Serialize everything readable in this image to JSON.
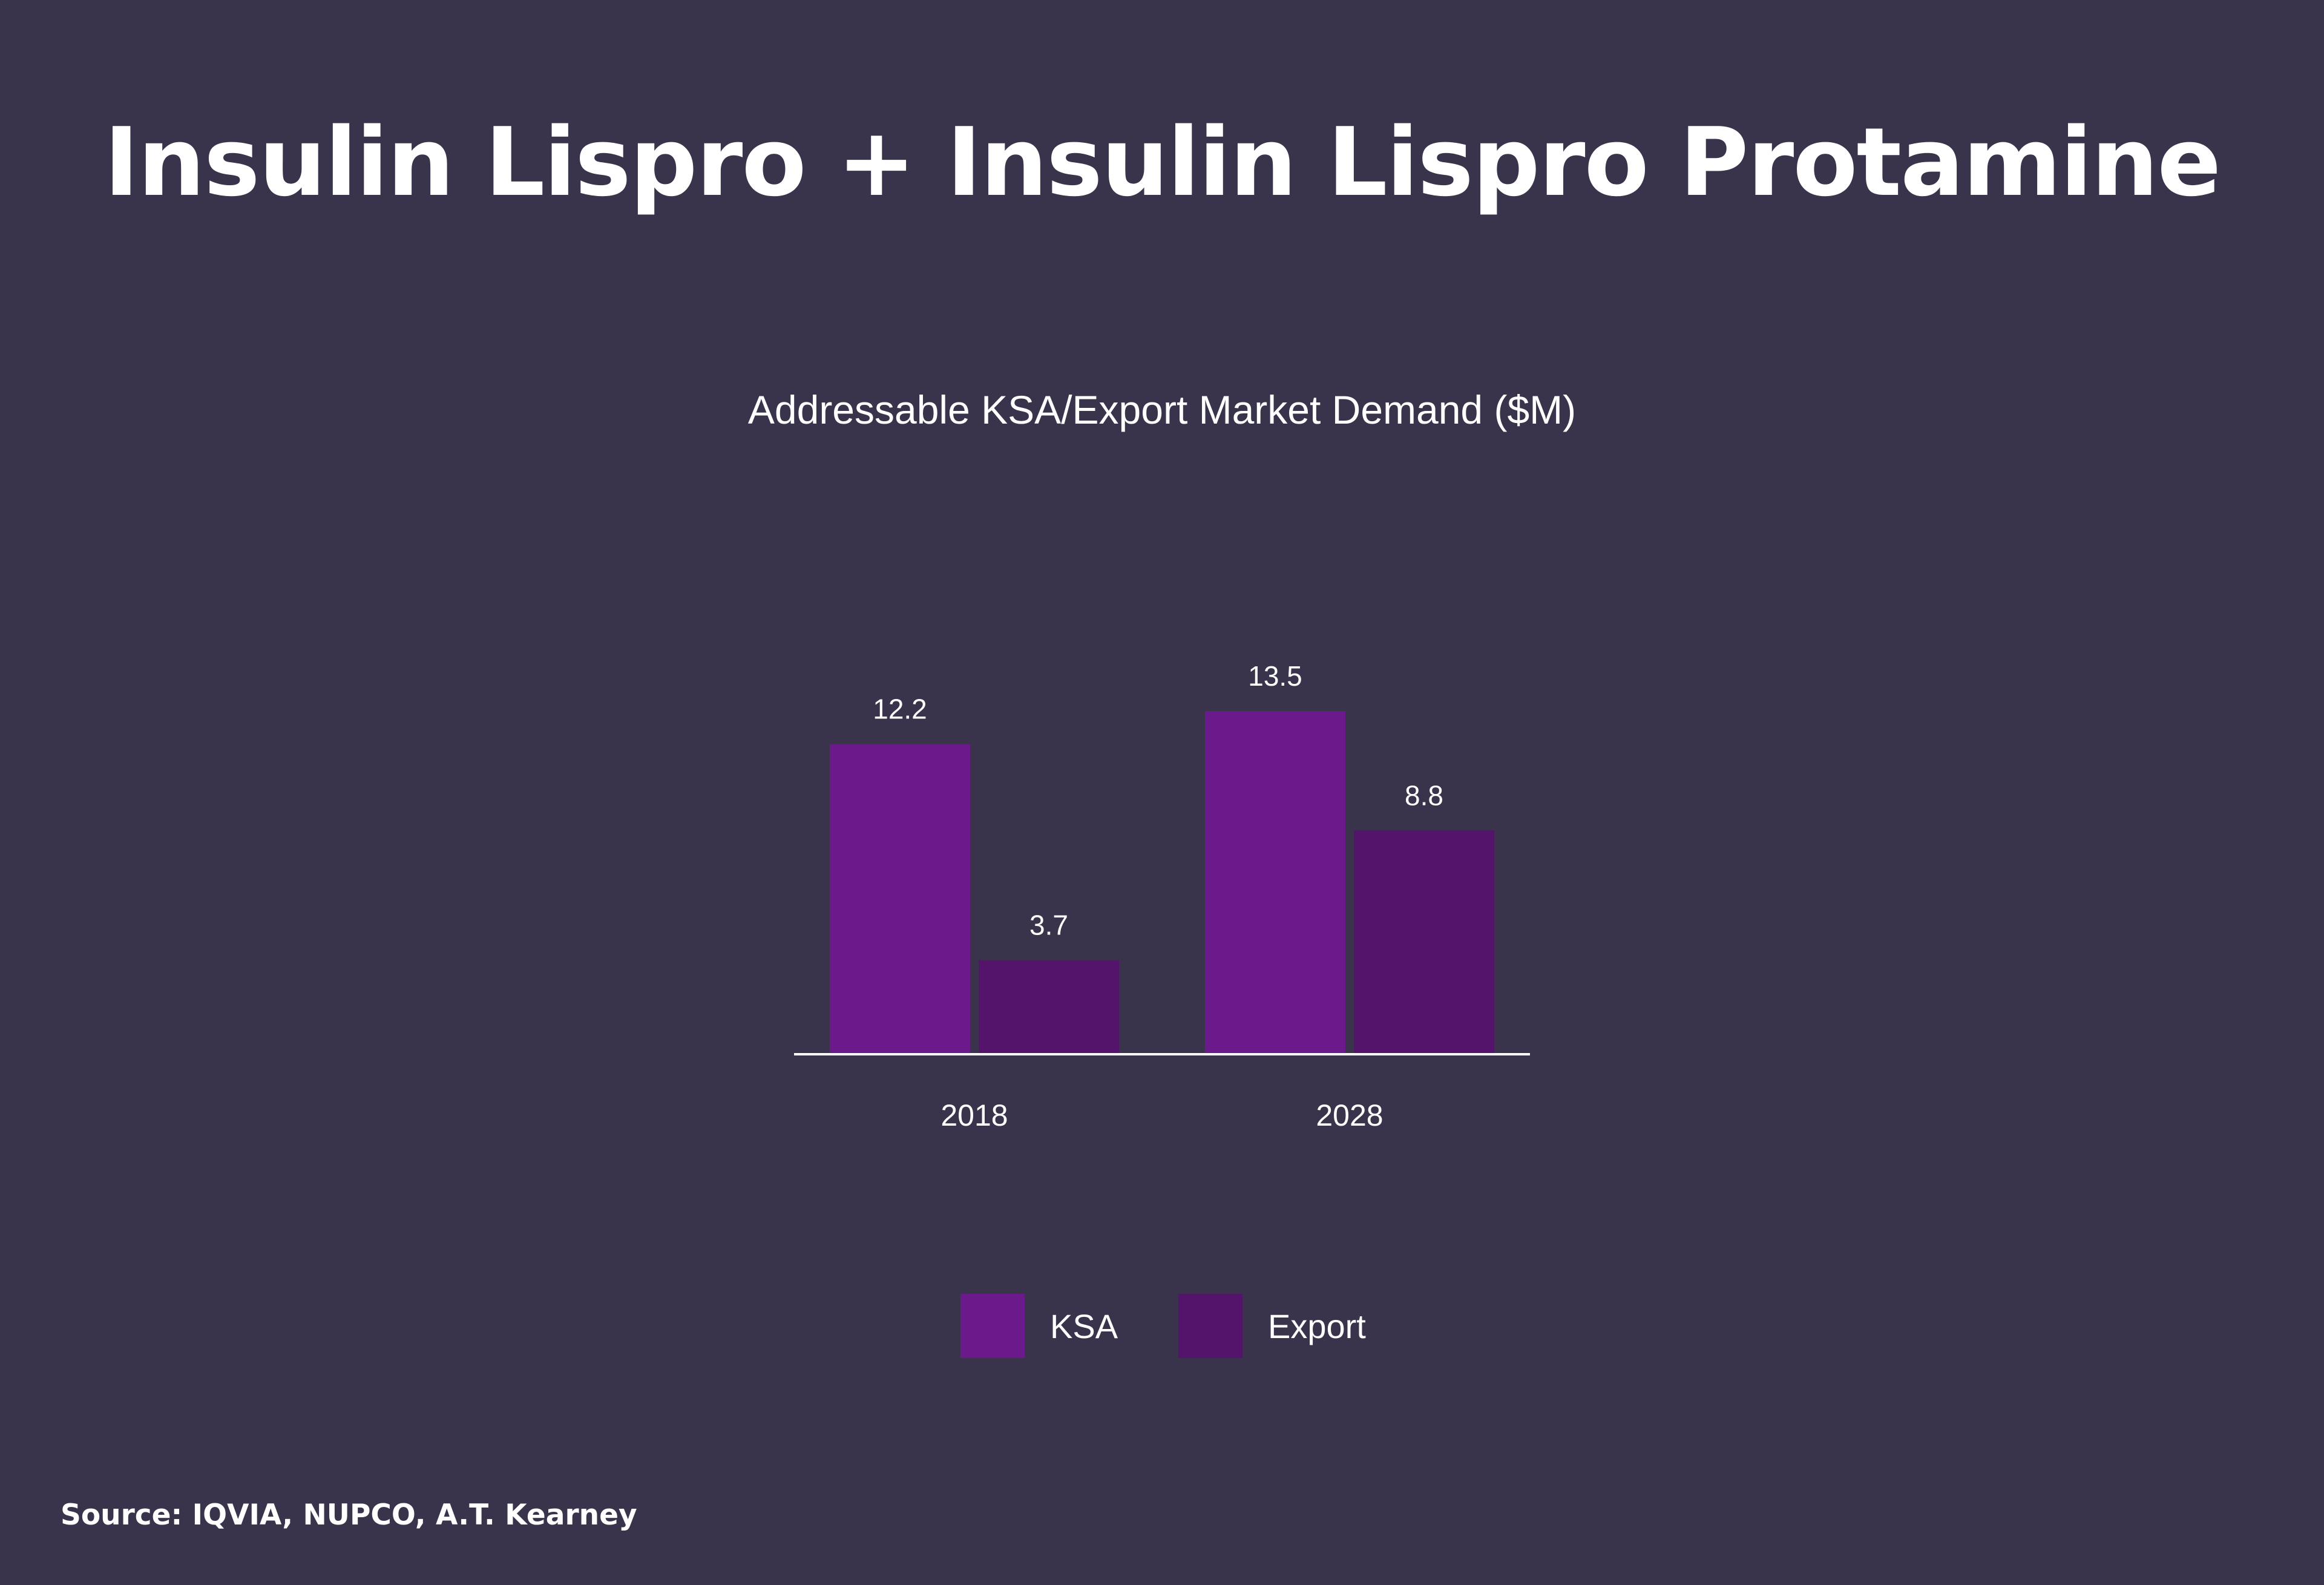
{
  "title": "Insulin Lispro + Insulin Lispro Protamine",
  "source": "Source: IQVIA, NUPCO, A.T. Kearney",
  "chart_data": {
    "type": "bar",
    "title": "Addressable KSA/Export Market Demand ($M)",
    "categories": [
      "2018",
      "2028"
    ],
    "series": [
      {
        "name": "KSA",
        "values": [
          12.2,
          13.5
        ],
        "color": "#6a1a8a"
      },
      {
        "name": "Export",
        "values": [
          3.7,
          8.8
        ],
        "color": "#55146c"
      }
    ],
    "data_labels": [
      [
        "12.2",
        "13.5"
      ],
      [
        "3.7",
        "8.8"
      ]
    ],
    "xlabel": "",
    "ylabel": "",
    "ylim": [
      0,
      13.5
    ],
    "grid": false,
    "legend_position": "bottom-center"
  },
  "colors": {
    "background": "#39344b",
    "text": "#ffffff",
    "axis": "#ffffff"
  }
}
